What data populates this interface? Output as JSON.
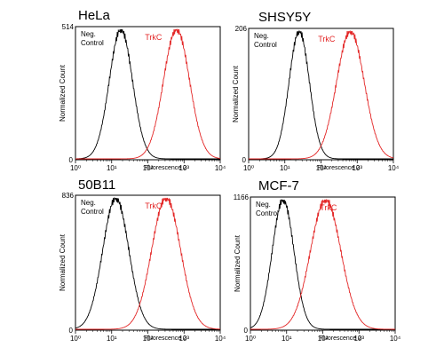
{
  "chart_data": [
    {
      "type": "line",
      "title": "HeLa",
      "ylabel": "Normalized Count",
      "xlabel": "Fluorescence 2",
      "ylim_label": "514",
      "x_ticks": [
        "10⁰",
        "10¹",
        "10²",
        "10³",
        "10⁴"
      ],
      "xscale": "log",
      "xlim": [
        1,
        10000
      ],
      "series": [
        {
          "name": "Neg. Control",
          "color": "#000000",
          "peak_x": 18,
          "width_decades": 0.32
        },
        {
          "name": "TrkC",
          "color": "#e32626",
          "peak_x": 620,
          "width_decades": 0.36
        }
      ]
    },
    {
      "type": "line",
      "title": "SHSY5Y",
      "ylabel": "Normalized Count",
      "xlabel": "Fluorescence 2",
      "ylim_label": "206",
      "x_ticks": [
        "10⁰",
        "10¹",
        "10²",
        "10³",
        "10⁴"
      ],
      "xscale": "log",
      "xlim": [
        1,
        10000
      ],
      "series": [
        {
          "name": "Neg. Control",
          "color": "#000000",
          "peak_x": 25,
          "width_decades": 0.28
        },
        {
          "name": "TrkC",
          "color": "#e32626",
          "peak_x": 650,
          "width_decades": 0.38
        }
      ]
    },
    {
      "type": "line",
      "title": "50B11",
      "ylabel": "Normalized Count",
      "xlabel": "Fluorescence 2",
      "ylim_label": "836",
      "x_ticks": [
        "10⁰",
        "10¹",
        "10²",
        "10³",
        "10⁴"
      ],
      "xscale": "log",
      "xlim": [
        1,
        10000
      ],
      "series": [
        {
          "name": "Neg. Control",
          "color": "#000000",
          "peak_x": 13,
          "width_decades": 0.36
        },
        {
          "name": "TrkC",
          "color": "#e32626",
          "peak_x": 320,
          "width_decades": 0.4
        }
      ]
    },
    {
      "type": "line",
      "title": "MCF-7",
      "ylabel": "Normalized Count",
      "xlabel": "Fluorescence 2",
      "ylim_label": "1166",
      "x_ticks": [
        "10⁰",
        "10¹",
        "10²",
        "10³",
        "10⁴"
      ],
      "xscale": "log",
      "xlim": [
        1,
        10000
      ],
      "series": [
        {
          "name": "Neg. Control",
          "color": "#000000",
          "peak_x": 8,
          "width_decades": 0.3
        },
        {
          "name": "TrkC",
          "color": "#e32626",
          "peak_x": 120,
          "width_decades": 0.42
        }
      ]
    }
  ]
}
